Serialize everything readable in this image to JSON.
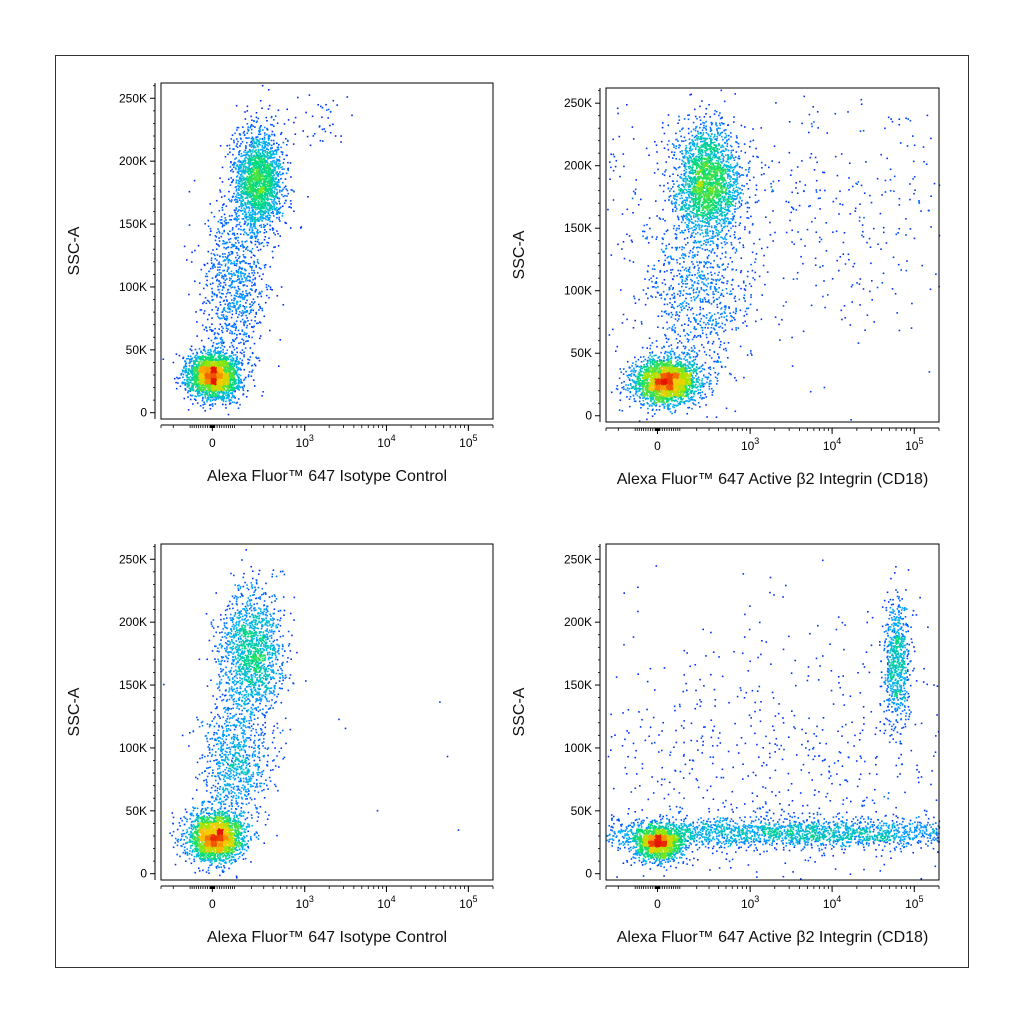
{
  "chart_data": [
    {
      "type": "scatter",
      "subtype": "flow-cytometry-density-plot",
      "xlabel": "Alexa Fluor™ 647 Isotype Control",
      "ylabel": "SSC-A",
      "x_scale": "biexponential",
      "xlim": [
        -300,
        200000
      ],
      "ylim": [
        -5000,
        262144
      ],
      "x_ticks": [
        {
          "value": 0,
          "label": "0"
        },
        {
          "value": 1000,
          "label": "10",
          "sup": "3"
        },
        {
          "value": 10000,
          "label": "10",
          "sup": "4"
        },
        {
          "value": 100000,
          "label": "10",
          "sup": "5"
        }
      ],
      "y_ticks": [
        {
          "value": 0,
          "label": "0"
        },
        {
          "value": 50000,
          "label": "50K"
        },
        {
          "value": 100000,
          "label": "100K"
        },
        {
          "value": 150000,
          "label": "150K"
        },
        {
          "value": 200000,
          "label": "200K"
        },
        {
          "value": 250000,
          "label": "250K"
        }
      ],
      "populations": [
        {
          "x": 0,
          "y": 30000,
          "x_spread": 60,
          "y_spread": 9000,
          "count": 2600
        },
        {
          "x": 250,
          "y": 185000,
          "x_spread": 110,
          "y_spread": 20000,
          "count": 2000
        },
        {
          "x": 90,
          "y": 100000,
          "x_spread": 90,
          "y_spread": 35000,
          "count": 900
        },
        {
          "x": 1500,
          "y": 235000,
          "x_spread": 700,
          "y_spread": 12000,
          "count": 40
        }
      ]
    },
    {
      "type": "scatter",
      "subtype": "flow-cytometry-density-plot",
      "xlabel": "Alexa Fluor™ 647 Active β2 Integrin (CD18)",
      "ylabel": "SSC-A",
      "x_scale": "biexponential",
      "xlim": [
        -300,
        200000
      ],
      "ylim": [
        -5000,
        262144
      ],
      "x_ticks": [
        {
          "value": 0,
          "label": "0"
        },
        {
          "value": 1000,
          "label": "10",
          "sup": "3"
        },
        {
          "value": 10000,
          "label": "10",
          "sup": "4"
        },
        {
          "value": 100000,
          "label": "10",
          "sup": "5"
        }
      ],
      "y_ticks": [
        {
          "value": 0,
          "label": "0"
        },
        {
          "value": 50000,
          "label": "50K"
        },
        {
          "value": 100000,
          "label": "100K"
        },
        {
          "value": 150000,
          "label": "150K"
        },
        {
          "value": 200000,
          "label": "200K"
        },
        {
          "value": 250000,
          "label": "250K"
        }
      ],
      "populations": [
        {
          "x": 30,
          "y": 28000,
          "x_spread": 80,
          "y_spread": 9000,
          "count": 2400
        },
        {
          "x": 280,
          "y": 188000,
          "x_spread": 150,
          "y_spread": 22000,
          "count": 2200
        },
        {
          "x": 200,
          "y": 100000,
          "x_spread": 200,
          "y_spread": 40000,
          "count": 900
        },
        {
          "x": 5000,
          "y": 160000,
          "x_spread": 12000,
          "y_spread": 50000,
          "count": 700
        }
      ]
    },
    {
      "type": "scatter",
      "subtype": "flow-cytometry-density-plot",
      "xlabel": "Alexa Fluor™ 647 Isotype Control",
      "ylabel": "SSC-A",
      "x_scale": "biexponential",
      "xlim": [
        -300,
        200000
      ],
      "ylim": [
        -5000,
        262144
      ],
      "x_ticks": [
        {
          "value": 0,
          "label": "0"
        },
        {
          "value": 1000,
          "label": "10",
          "sup": "3"
        },
        {
          "value": 10000,
          "label": "10",
          "sup": "4"
        },
        {
          "value": 100000,
          "label": "10",
          "sup": "5"
        }
      ],
      "y_ticks": [
        {
          "value": 0,
          "label": "0"
        },
        {
          "value": 50000,
          "label": "50K"
        },
        {
          "value": 100000,
          "label": "100K"
        },
        {
          "value": 150000,
          "label": "150K"
        },
        {
          "value": 200000,
          "label": "200K"
        },
        {
          "value": 250000,
          "label": "250K"
        }
      ],
      "populations": [
        {
          "x": 10,
          "y": 30000,
          "x_spread": 70,
          "y_spread": 10000,
          "count": 2200
        },
        {
          "x": 200,
          "y": 175000,
          "x_spread": 120,
          "y_spread": 25000,
          "count": 1500
        },
        {
          "x": 100,
          "y": 90000,
          "x_spread": 100,
          "y_spread": 30000,
          "count": 900
        },
        {
          "x": 3000,
          "y": 120000,
          "x_spread": 20000,
          "y_spread": 70000,
          "count": 20
        }
      ]
    },
    {
      "type": "scatter",
      "subtype": "flow-cytometry-density-plot",
      "xlabel": "Alexa Fluor™ 647 Active β2 Integrin (CD18)",
      "ylabel": "SSC-A",
      "x_scale": "biexponential",
      "xlim": [
        -300,
        200000
      ],
      "ylim": [
        -5000,
        262144
      ],
      "x_ticks": [
        {
          "value": 0,
          "label": "0"
        },
        {
          "value": 1000,
          "label": "10",
          "sup": "3"
        },
        {
          "value": 10000,
          "label": "10",
          "sup": "4"
        },
        {
          "value": 100000,
          "label": "10",
          "sup": "5"
        }
      ],
      "y_ticks": [
        {
          "value": 0,
          "label": "0"
        },
        {
          "value": 50000,
          "label": "50K"
        },
        {
          "value": 100000,
          "label": "100K"
        },
        {
          "value": 150000,
          "label": "150K"
        },
        {
          "value": 200000,
          "label": "200K"
        },
        {
          "value": 250000,
          "label": "250K"
        }
      ],
      "populations": [
        {
          "x": 0,
          "y": 25000,
          "x_spread": 60,
          "y_spread": 7000,
          "count": 1500
        },
        {
          "x": 2500,
          "y": 33000,
          "x_spread": 5000,
          "y_spread": 6000,
          "count": 2500
        },
        {
          "x": 60000,
          "y": 170000,
          "x_spread": 12000,
          "y_spread": 25000,
          "count": 700
        },
        {
          "x": 1500,
          "y": 90000,
          "x_spread": 8000,
          "y_spread": 60000,
          "count": 900
        }
      ]
    }
  ]
}
